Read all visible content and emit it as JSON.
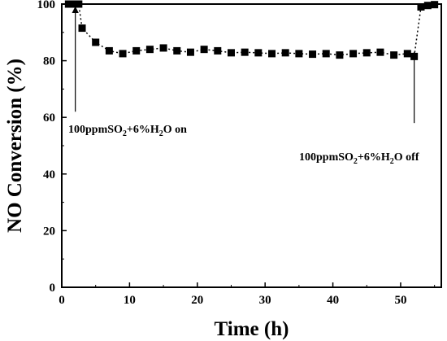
{
  "chart_data": {
    "type": "scatter",
    "xlabel": "Time (h)",
    "ylabel": "NO Conversion (%)",
    "xlim": [
      0,
      56
    ],
    "ylim": [
      0,
      100
    ],
    "xticks": [
      0,
      10,
      20,
      30,
      40,
      50
    ],
    "yticks": [
      0,
      20,
      40,
      60,
      80,
      100
    ],
    "grid": false,
    "line_style": "dotted-with-square-markers",
    "series": [
      {
        "x": [
          1,
          1.5,
          2,
          2.5,
          3,
          5,
          7,
          9,
          11,
          13,
          15,
          17,
          19,
          21,
          23,
          25,
          27,
          29,
          31,
          33,
          35,
          37,
          39,
          41,
          43,
          45,
          47,
          49,
          51,
          52,
          53,
          54,
          55
        ],
        "y": [
          100,
          100,
          100,
          100,
          91.5,
          86.5,
          83.5,
          82.5,
          83.5,
          84,
          84.5,
          83.5,
          83,
          84,
          83.5,
          82.8,
          83,
          82.8,
          82.5,
          82.8,
          82.5,
          82.3,
          82.5,
          82,
          82.5,
          82.8,
          83,
          82,
          82.5,
          81.5,
          99,
          99.5,
          99.8
        ]
      }
    ],
    "annotations": [
      {
        "text": "100ppmSO",
        "sub1": "2",
        "mid": "+6%H",
        "sub2": "2",
        "tail": "O on",
        "arrow_x": 2,
        "arrow_y_from": 62,
        "arrow_y_to": 99
      },
      {
        "text": "100ppmSO",
        "sub1": "2",
        "mid": "+6%H",
        "sub2": "2",
        "tail": "O off",
        "arrow_x": 52,
        "arrow_y_from": 58,
        "arrow_y_to": 83
      }
    ]
  }
}
